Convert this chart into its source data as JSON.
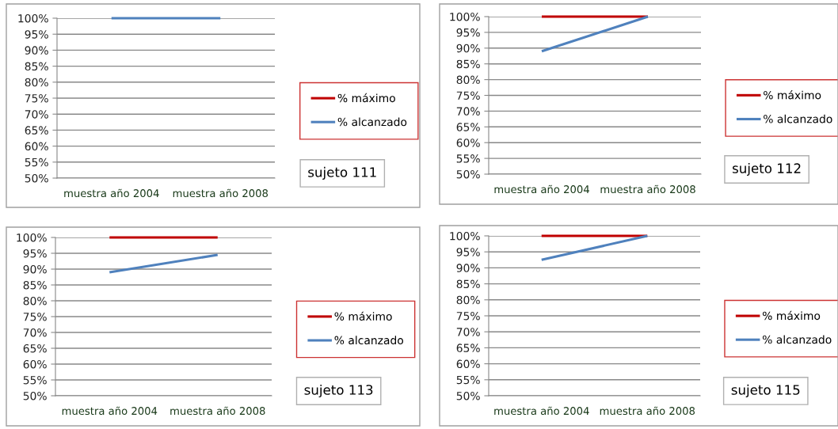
{
  "chart_data": [
    {
      "type": "line",
      "categories": [
        "muestra año 2004",
        "muestra año 2008"
      ],
      "series": [
        {
          "name": "% máximo",
          "color": "#c00000",
          "values": [
            null,
            null
          ]
        },
        {
          "name": "% alcanzado",
          "color": "#4f81bd",
          "values": [
            100,
            100
          ]
        }
      ],
      "ylim": [
        50,
        100
      ],
      "yticks": [
        {
          "value": 50,
          "label": "50%"
        },
        {
          "value": 55,
          "label": "55%"
        },
        {
          "value": 60,
          "label": "60%"
        },
        {
          "value": 65,
          "label": "65%"
        },
        {
          "value": 70,
          "label": "70%"
        },
        {
          "value": 75,
          "label": "75%"
        },
        {
          "value": 80,
          "label": "80%"
        },
        {
          "value": 85,
          "label": "85%"
        },
        {
          "value": 90,
          "label": "90%"
        },
        {
          "value": 95,
          "label": "95%"
        },
        {
          "value": 100,
          "label": "100%"
        }
      ],
      "grid": "y",
      "legend": "right",
      "annotations": [
        "sujeto 111"
      ]
    },
    {
      "type": "line",
      "categories": [
        "muestra año 2004",
        "muestra año 2008"
      ],
      "series": [
        {
          "name": "% máximo",
          "color": "#c00000",
          "values": [
            100,
            100
          ]
        },
        {
          "name": "% alcanzado",
          "color": "#4f81bd",
          "values": [
            89,
            100
          ]
        }
      ],
      "ylim": [
        50,
        100
      ],
      "yticks": [
        {
          "value": 50,
          "label": "50%"
        },
        {
          "value": 55,
          "label": "55%"
        },
        {
          "value": 60,
          "label": "60%"
        },
        {
          "value": 65,
          "label": "65%"
        },
        {
          "value": 70,
          "label": "70%"
        },
        {
          "value": 75,
          "label": "75%"
        },
        {
          "value": 80,
          "label": "80%"
        },
        {
          "value": 85,
          "label": "85%"
        },
        {
          "value": 90,
          "label": "90%"
        },
        {
          "value": 95,
          "label": "95%"
        },
        {
          "value": 100,
          "label": "100%"
        }
      ],
      "grid": "y",
      "legend": "right",
      "annotations": [
        "sujeto 112"
      ]
    },
    {
      "type": "line",
      "categories": [
        "muestra año 2004",
        "muestra año 2008"
      ],
      "series": [
        {
          "name": "% máximo",
          "color": "#c00000",
          "values": [
            100,
            100
          ]
        },
        {
          "name": "% alcanzado",
          "color": "#4f81bd",
          "values": [
            89,
            94.5
          ]
        }
      ],
      "ylim": [
        50,
        100
      ],
      "yticks": [
        {
          "value": 50,
          "label": "50%"
        },
        {
          "value": 55,
          "label": "55%"
        },
        {
          "value": 60,
          "label": "60%"
        },
        {
          "value": 65,
          "label": "65%"
        },
        {
          "value": 70,
          "label": "70%"
        },
        {
          "value": 75,
          "label": "75%"
        },
        {
          "value": 80,
          "label": "80%"
        },
        {
          "value": 85,
          "label": "85%"
        },
        {
          "value": 90,
          "label": "90%"
        },
        {
          "value": 95,
          "label": "95%"
        },
        {
          "value": 100,
          "label": "100%"
        }
      ],
      "grid": "y",
      "legend": "right",
      "annotations": [
        "sujeto 113"
      ]
    },
    {
      "type": "line",
      "categories": [
        "muestra año 2004",
        "muestra año 2008"
      ],
      "series": [
        {
          "name": "% máximo",
          "color": "#c00000",
          "values": [
            100,
            100
          ]
        },
        {
          "name": "% alcanzado",
          "color": "#4f81bd",
          "values": [
            92.5,
            100
          ]
        }
      ],
      "ylim": [
        50,
        100
      ],
      "yticks": [
        {
          "value": 50,
          "label": "50%"
        },
        {
          "value": 55,
          "label": "55%"
        },
        {
          "value": 60,
          "label": "60%"
        },
        {
          "value": 65,
          "label": "65%"
        },
        {
          "value": 70,
          "label": "70%"
        },
        {
          "value": 75,
          "label": "75%"
        },
        {
          "value": 80,
          "label": "80%"
        },
        {
          "value": 85,
          "label": "85%"
        },
        {
          "value": 90,
          "label": "90%"
        },
        {
          "value": 95,
          "label": "95%"
        },
        {
          "value": 100,
          "label": "100%"
        }
      ],
      "grid": "y",
      "legend": "right",
      "annotations": [
        "sujeto 115"
      ]
    }
  ]
}
